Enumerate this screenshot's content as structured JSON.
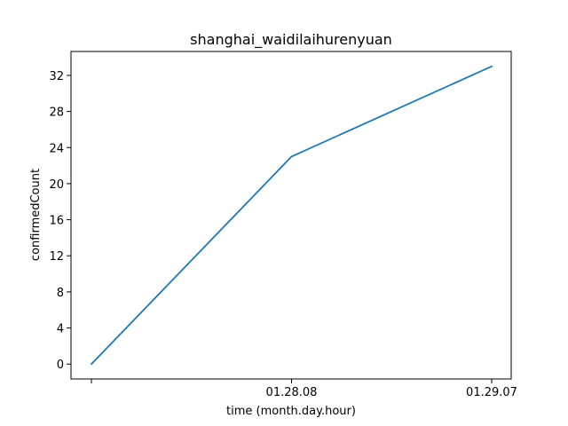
{
  "chart_data": {
    "type": "line",
    "title": "shanghai_waidilaihurenyuan",
    "xlabel": "time (month.day.hour)",
    "ylabel": "confirmedCount",
    "categories": [
      "",
      "01.28.08",
      "01.29.07"
    ],
    "series": [
      {
        "name": "confirmedCount",
        "color": "#1f77b4",
        "values": [
          0,
          23,
          33
        ]
      }
    ],
    "yticks": [
      0,
      4,
      8,
      12,
      16,
      20,
      24,
      28,
      32
    ],
    "ylim": [
      -1.65,
      34.65
    ],
    "grid": false,
    "legend": "none"
  }
}
